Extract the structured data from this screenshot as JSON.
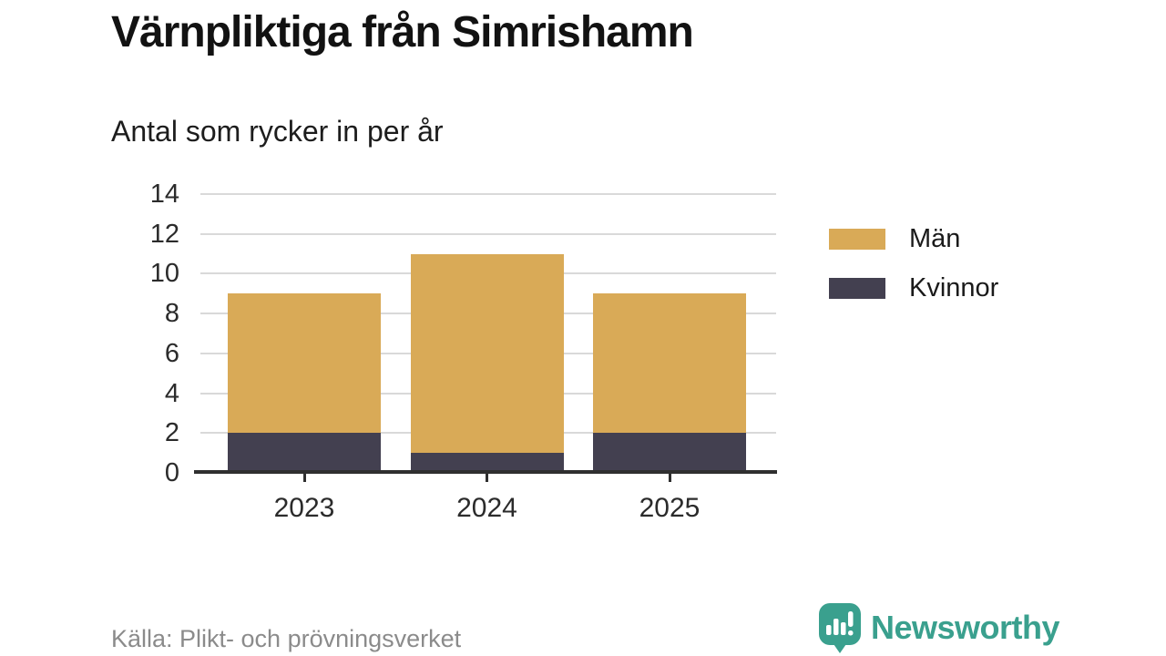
{
  "title": "Värnpliktiga från Simrishamn",
  "subtitle": "Antal som rycker in per år",
  "source": "Källa: Plikt- och prövningsverket",
  "branding": {
    "name": "Newsworthy",
    "color": "#3aa08e",
    "icon": "speech-bubble-bar-chart-exclamation"
  },
  "colors": {
    "men": "#d9aa57",
    "women": "#434050",
    "gridline": "#d9d9d9",
    "axis": "#2f2f2f"
  },
  "legend": {
    "items": [
      {
        "label": "Män",
        "color": "#d9aa57"
      },
      {
        "label": "Kvinnor",
        "color": "#434050"
      }
    ]
  },
  "chart_data": {
    "type": "bar",
    "stacked": true,
    "title": "Värnpliktiga från Simrishamn",
    "subtitle": "Antal som rycker in per år",
    "xlabel": "",
    "ylabel": "",
    "categories": [
      "2023",
      "2024",
      "2025"
    ],
    "series": [
      {
        "name": "Män",
        "color": "#d9aa57",
        "values": [
          7,
          10,
          7
        ]
      },
      {
        "name": "Kvinnor",
        "color": "#434050",
        "values": [
          2,
          1,
          2
        ]
      }
    ],
    "stack_bottom_series": "Kvinnor",
    "stack_totals": [
      9,
      11,
      9
    ],
    "ylim": [
      0,
      14
    ],
    "yticks": [
      0,
      2,
      4,
      6,
      8,
      10,
      12,
      14
    ],
    "grid": true,
    "legend_position": "right",
    "source": "Källa: Plikt- och prövningsverket"
  }
}
